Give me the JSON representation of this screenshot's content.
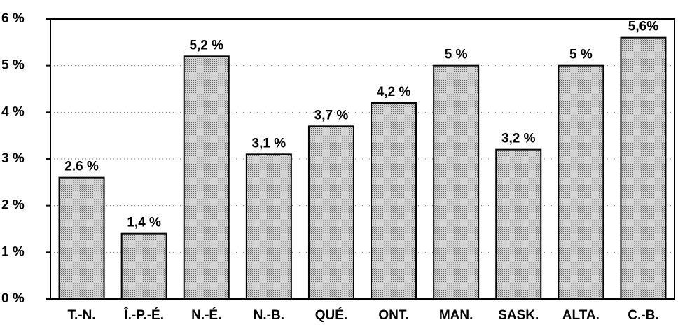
{
  "chart_data": {
    "type": "bar",
    "categories": [
      "T.-N.",
      "Î.-P.-É.",
      "N.-É.",
      "N.-B.",
      "QUÉ.",
      "ONT.",
      "MAN.",
      "SASK.",
      "ALTA.",
      "C.-B."
    ],
    "values": [
      2.6,
      1.4,
      5.2,
      3.1,
      3.7,
      4.2,
      5,
      3.2,
      5,
      5.6
    ],
    "value_labels": [
      "2.6 %",
      "1,4 %",
      "5,2 %",
      "3,1 %",
      "3,7 %",
      "4,2 %",
      "5 %",
      "3,2 %",
      "5 %",
      "5,6%"
    ],
    "color": "#b8b8b8",
    "ylim": [
      0,
      6
    ],
    "yticks": [
      {
        "value": 0,
        "label": "0 %"
      },
      {
        "value": 1,
        "label": "1 %"
      },
      {
        "value": 2,
        "label": "2 %"
      },
      {
        "value": 3,
        "label": "3 %"
      },
      {
        "value": 4,
        "label": "4 %"
      },
      {
        "value": 5,
        "label": "5 %"
      },
      {
        "value": 6,
        "label": "6 %"
      }
    ],
    "grid": true
  }
}
